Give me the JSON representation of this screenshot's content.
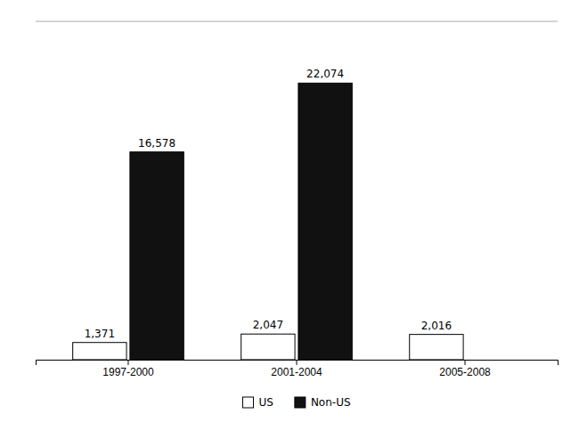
{
  "chart_data": {
    "type": "bar",
    "categories": [
      "1997-2000",
      "2001-2004",
      "2005-2008"
    ],
    "series": [
      {
        "name": "US",
        "color": "#ffffff",
        "values": [
          1371,
          2047,
          2016
        ],
        "value_labels": [
          "1,371",
          "2,047",
          "2,016"
        ]
      },
      {
        "name": "Non-US",
        "color": "#111111",
        "values": [
          16578,
          22074,
          0
        ],
        "value_labels": [
          "16,578",
          "22,074",
          null
        ]
      }
    ],
    "ylim": [
      0,
      27000
    ],
    "data_labels": true,
    "tick_labels": "x",
    "legend": "bottom",
    "grid": false
  }
}
